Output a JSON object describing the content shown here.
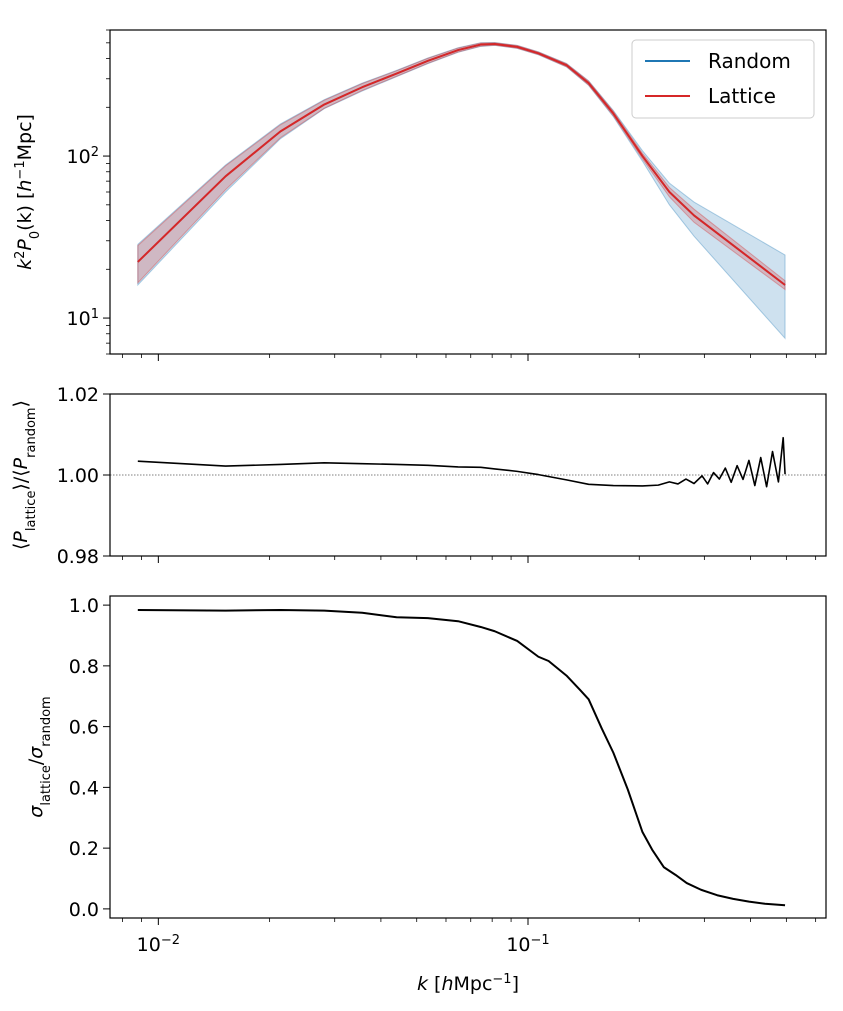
{
  "chart_data": [
    {
      "id": "power",
      "type": "line",
      "ylabel": "k²P₀(k) [h⁻¹Mpc]",
      "ylabel_parts": {
        "a": "k",
        "b": "2",
        "c": "P",
        "d": "0",
        "e": "(k) [",
        "f": "h",
        "g": "−1",
        "h": "Mpc]"
      },
      "xscale": "log",
      "yscale": "log",
      "xlim": [
        0.0074,
        0.64
      ],
      "ylim": [
        6,
        600
      ],
      "yticks": [
        {
          "v": 10,
          "base": "10",
          "exp": "1"
        },
        {
          "v": 100,
          "base": "10",
          "exp": "2"
        }
      ],
      "legend": {
        "position": "top-right",
        "entries": [
          {
            "name": "Random",
            "color": "#1f77b4"
          },
          {
            "name": "Lattice",
            "color": "#d62728"
          }
        ]
      },
      "x": [
        0.0088,
        0.0152,
        0.0214,
        0.0281,
        0.0356,
        0.0441,
        0.0536,
        0.0647,
        0.0745,
        0.0813,
        0.0935,
        0.1067,
        0.1271,
        0.1459,
        0.1702,
        0.204,
        0.2413,
        0.2813,
        0.4959
      ],
      "series": [
        {
          "name": "Random",
          "color": "#1f77b4",
          "values": [
            22.2,
            75.0,
            142.0,
            208.0,
            266.0,
            323.0,
            387.0,
            451.0,
            488.0,
            492.0,
            472.0,
            431.0,
            364.0,
            282.0,
            183.0,
            100.0,
            60.0,
            43.0,
            16.0
          ],
          "lower": [
            16.0,
            60.0,
            128.0,
            196.0,
            252.0,
            309.0,
            372.0,
            437.0,
            475.0,
            482.0,
            462.0,
            422.0,
            355.0,
            273.0,
            175.0,
            93.0,
            50.0,
            32.0,
            7.5
          ],
          "upper": [
            28.5,
            88.0,
            158.0,
            223.0,
            282.0,
            338.0,
            403.0,
            466.0,
            501.0,
            502.0,
            482.0,
            440.0,
            373.0,
            291.0,
            191.0,
            108.0,
            68.0,
            52.0,
            24.5
          ]
        },
        {
          "name": "Lattice",
          "color": "#d62728",
          "values": [
            22.2,
            75.0,
            142.0,
            208.0,
            266.0,
            323.0,
            387.0,
            451.0,
            488.0,
            492.0,
            472.0,
            431.0,
            364.0,
            282.0,
            183.0,
            100.0,
            60.0,
            43.0,
            16.0
          ],
          "lower": [
            16.5,
            62.0,
            130.0,
            197.0,
            254.0,
            311.0,
            374.0,
            439.0,
            477.0,
            483.0,
            463.0,
            423.0,
            356.0,
            274.0,
            177.0,
            96.0,
            56.0,
            39.0,
            15.0
          ],
          "upper": [
            28.0,
            87.0,
            156.0,
            221.0,
            280.0,
            336.0,
            401.0,
            464.0,
            499.0,
            501.0,
            481.0,
            439.0,
            372.0,
            290.0,
            189.0,
            104.0,
            64.0,
            47.0,
            17.0
          ]
        }
      ]
    },
    {
      "id": "ratio",
      "type": "line",
      "ylabel_parts": {
        "a": "⟨",
        "b": "P",
        "c": "lattice",
        "d": "⟩/⟨",
        "e": "P",
        "f": "random",
        "g": "⟩"
      },
      "xscale": "log",
      "xlim": [
        0.0074,
        0.64
      ],
      "ylim": [
        0.98,
        1.02
      ],
      "yticks": [
        {
          "v": 0.98,
          "label": "0.98"
        },
        {
          "v": 1.0,
          "label": "1.00"
        },
        {
          "v": 1.02,
          "label": "1.02"
        }
      ],
      "reference_line": 1.0,
      "x": [
        0.0088,
        0.0152,
        0.0214,
        0.0281,
        0.0356,
        0.0441,
        0.0536,
        0.0647,
        0.0745,
        0.0813,
        0.0935,
        0.1067,
        0.1271,
        0.1459,
        0.1702,
        0.204,
        0.2251,
        0.2413,
        0.2545,
        0.2675,
        0.2813,
        0.2957,
        0.3062,
        0.3176,
        0.3294,
        0.3418,
        0.3546,
        0.3679,
        0.3817,
        0.396,
        0.4108,
        0.4262,
        0.4421,
        0.4587,
        0.4758,
        0.4902,
        0.4959
      ],
      "values": [
        1.0034,
        1.0022,
        1.0026,
        1.003,
        1.0028,
        1.0026,
        1.0024,
        1.002,
        1.0019,
        1.0015,
        1.0009,
        1.0001,
        0.9988,
        0.9977,
        0.9974,
        0.9973,
        0.9975,
        0.9983,
        0.9978,
        0.999,
        0.9979,
        0.9998,
        0.9978,
        1.0006,
        0.999,
        1.0017,
        0.9982,
        1.0023,
        0.9989,
        1.0036,
        0.9974,
        1.0043,
        0.9971,
        1.0058,
        0.9983,
        1.0092,
        1.0002
      ]
    },
    {
      "id": "sigma",
      "type": "line",
      "ylabel_parts": {
        "a": "σ",
        "b": "lattice",
        "c": "/",
        "d": "σ",
        "e": "random"
      },
      "xlabel_parts": {
        "a": "k",
        "b": " [",
        "c": "h",
        "d": "Mpc",
        "e": "−1",
        "f": "]"
      },
      "xscale": "log",
      "xlim": [
        0.0074,
        0.64
      ],
      "ylim": [
        -0.03,
        1.03
      ],
      "yticks": [
        {
          "v": 0.0,
          "label": "0.0"
        },
        {
          "v": 0.2,
          "label": "0.2"
        },
        {
          "v": 0.4,
          "label": "0.4"
        },
        {
          "v": 0.6,
          "label": "0.6"
        },
        {
          "v": 0.8,
          "label": "0.8"
        },
        {
          "v": 1.0,
          "label": "1.0"
        }
      ],
      "xticks": [
        {
          "v": 0.01,
          "base": "10",
          "exp": "−2"
        },
        {
          "v": 0.1,
          "base": "10",
          "exp": "−1"
        }
      ],
      "x": [
        0.0088,
        0.0152,
        0.0214,
        0.0281,
        0.0356,
        0.0441,
        0.0536,
        0.0647,
        0.0745,
        0.0813,
        0.0935,
        0.1067,
        0.1137,
        0.1271,
        0.1385,
        0.1459,
        0.1583,
        0.1702,
        0.1862,
        0.204,
        0.2167,
        0.2332,
        0.2506,
        0.2688,
        0.2938,
        0.3249,
        0.359,
        0.3962,
        0.4376,
        0.4959
      ],
      "values": [
        0.984,
        0.982,
        0.984,
        0.982,
        0.975,
        0.96,
        0.957,
        0.947,
        0.928,
        0.914,
        0.882,
        0.83,
        0.816,
        0.768,
        0.72,
        0.69,
        0.594,
        0.514,
        0.393,
        0.253,
        0.195,
        0.137,
        0.112,
        0.085,
        0.063,
        0.045,
        0.033,
        0.024,
        0.017,
        0.012
      ]
    }
  ]
}
